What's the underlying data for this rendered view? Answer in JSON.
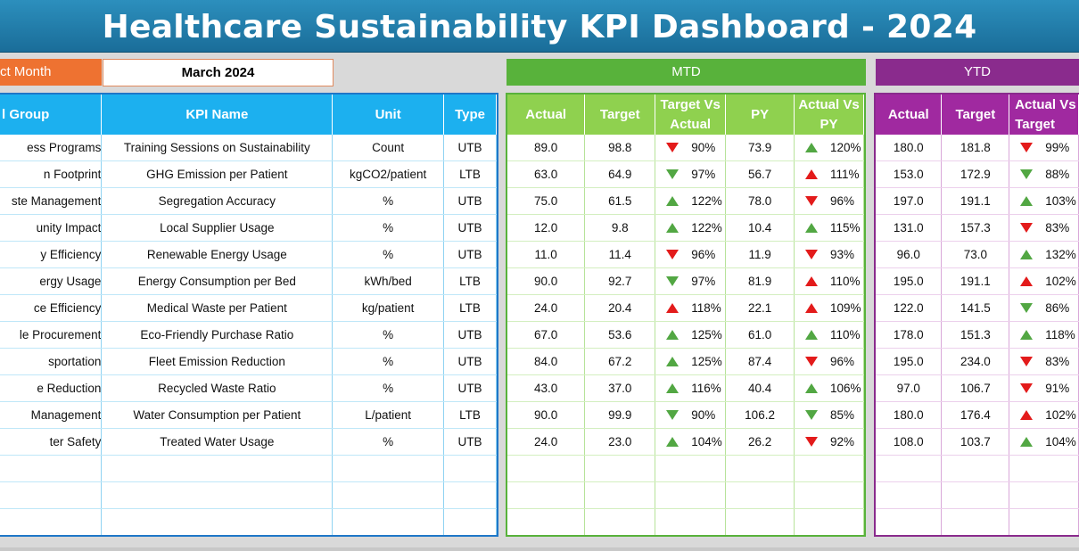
{
  "title": "Healthcare Sustainability KPI Dashboard - 2024",
  "select_month_label": "ct Month",
  "selected_month": "March 2024",
  "mtd_label": "MTD",
  "ytd_label": "YTD",
  "left_headers": [
    "l Group",
    "KPI Name",
    "Unit",
    "Type"
  ],
  "mtd_headers": [
    "Actual",
    "Target",
    "Target Vs Actual",
    "PY",
    "Actual Vs PY"
  ],
  "ytd_headers": [
    "Actual",
    "Target",
    "Actual Vs Target"
  ],
  "colors": {
    "title_bar": "#1a6d99",
    "month_label": "#ee7231",
    "mtd": "#58b23b",
    "ytd": "#8a2b8d",
    "info_header": "#1cb0ef",
    "up_good": "#52a743",
    "bad": "#e31b1b"
  },
  "rows": [
    {
      "group": "ess Programs",
      "kpi": "Training Sessions on Sustainability",
      "unit": "Count",
      "type": "UTB",
      "mtd_actual": "89.0",
      "mtd_target": "98.8",
      "tva": "90%",
      "tva_icon": "down-red",
      "py": "73.9",
      "avp": "120%",
      "avp_icon": "up-green",
      "ytd_actual": "180.0",
      "ytd_target": "181.8",
      "ytd_avt": "99%",
      "ytd_icon": "down-red"
    },
    {
      "group": "n Footprint",
      "kpi": "GHG Emission per Patient",
      "unit": "kgCO2/patient",
      "type": "LTB",
      "mtd_actual": "63.0",
      "mtd_target": "64.9",
      "tva": "97%",
      "tva_icon": "down-green",
      "py": "56.7",
      "avp": "111%",
      "avp_icon": "up-red",
      "ytd_actual": "153.0",
      "ytd_target": "172.9",
      "ytd_avt": "88%",
      "ytd_icon": "down-green"
    },
    {
      "group": "ste Management",
      "kpi": "Segregation Accuracy",
      "unit": "%",
      "type": "UTB",
      "mtd_actual": "75.0",
      "mtd_target": "61.5",
      "tva": "122%",
      "tva_icon": "up-green",
      "py": "78.0",
      "avp": "96%",
      "avp_icon": "down-red",
      "ytd_actual": "197.0",
      "ytd_target": "191.1",
      "ytd_avt": "103%",
      "ytd_icon": "up-green"
    },
    {
      "group": "unity Impact",
      "kpi": "Local Supplier Usage",
      "unit": "%",
      "type": "UTB",
      "mtd_actual": "12.0",
      "mtd_target": "9.8",
      "tva": "122%",
      "tva_icon": "up-green",
      "py": "10.4",
      "avp": "115%",
      "avp_icon": "up-green",
      "ytd_actual": "131.0",
      "ytd_target": "157.3",
      "ytd_avt": "83%",
      "ytd_icon": "down-red"
    },
    {
      "group": "y Efficiency",
      "kpi": "Renewable Energy Usage",
      "unit": "%",
      "type": "UTB",
      "mtd_actual": "11.0",
      "mtd_target": "11.4",
      "tva": "96%",
      "tva_icon": "down-red",
      "py": "11.9",
      "avp": "93%",
      "avp_icon": "down-red",
      "ytd_actual": "96.0",
      "ytd_target": "73.0",
      "ytd_avt": "132%",
      "ytd_icon": "up-green"
    },
    {
      "group": "ergy Usage",
      "kpi": "Energy Consumption per Bed",
      "unit": "kWh/bed",
      "type": "LTB",
      "mtd_actual": "90.0",
      "mtd_target": "92.7",
      "tva": "97%",
      "tva_icon": "down-green",
      "py": "81.9",
      "avp": "110%",
      "avp_icon": "up-red",
      "ytd_actual": "195.0",
      "ytd_target": "191.1",
      "ytd_avt": "102%",
      "ytd_icon": "up-red"
    },
    {
      "group": "ce Efficiency",
      "kpi": "Medical Waste per Patient",
      "unit": "kg/patient",
      "type": "LTB",
      "mtd_actual": "24.0",
      "mtd_target": "20.4",
      "tva": "118%",
      "tva_icon": "up-red",
      "py": "22.1",
      "avp": "109%",
      "avp_icon": "up-red",
      "ytd_actual": "122.0",
      "ytd_target": "141.5",
      "ytd_avt": "86%",
      "ytd_icon": "down-green"
    },
    {
      "group": "le Procurement",
      "kpi": "Eco-Friendly Purchase Ratio",
      "unit": "%",
      "type": "UTB",
      "mtd_actual": "67.0",
      "mtd_target": "53.6",
      "tva": "125%",
      "tva_icon": "up-green",
      "py": "61.0",
      "avp": "110%",
      "avp_icon": "up-green",
      "ytd_actual": "178.0",
      "ytd_target": "151.3",
      "ytd_avt": "118%",
      "ytd_icon": "up-green"
    },
    {
      "group": "sportation",
      "kpi": "Fleet Emission Reduction",
      "unit": "%",
      "type": "UTB",
      "mtd_actual": "84.0",
      "mtd_target": "67.2",
      "tva": "125%",
      "tva_icon": "up-green",
      "py": "87.4",
      "avp": "96%",
      "avp_icon": "down-red",
      "ytd_actual": "195.0",
      "ytd_target": "234.0",
      "ytd_avt": "83%",
      "ytd_icon": "down-red"
    },
    {
      "group": "e Reduction",
      "kpi": "Recycled Waste Ratio",
      "unit": "%",
      "type": "UTB",
      "mtd_actual": "43.0",
      "mtd_target": "37.0",
      "tva": "116%",
      "tva_icon": "up-green",
      "py": "40.4",
      "avp": "106%",
      "avp_icon": "up-green",
      "ytd_actual": "97.0",
      "ytd_target": "106.7",
      "ytd_avt": "91%",
      "ytd_icon": "down-red"
    },
    {
      "group": "Management",
      "kpi": "Water Consumption per Patient",
      "unit": "L/patient",
      "type": "LTB",
      "mtd_actual": "90.0",
      "mtd_target": "99.9",
      "tva": "90%",
      "tva_icon": "down-green",
      "py": "106.2",
      "avp": "85%",
      "avp_icon": "down-green",
      "ytd_actual": "180.0",
      "ytd_target": "176.4",
      "ytd_avt": "102%",
      "ytd_icon": "up-red"
    },
    {
      "group": "ter Safety",
      "kpi": "Treated Water Usage",
      "unit": "%",
      "type": "UTB",
      "mtd_actual": "24.0",
      "mtd_target": "23.0",
      "tva": "104%",
      "tva_icon": "up-green",
      "py": "26.2",
      "avp": "92%",
      "avp_icon": "down-red",
      "ytd_actual": "108.0",
      "ytd_target": "103.7",
      "ytd_avt": "104%",
      "ytd_icon": "up-green"
    }
  ]
}
